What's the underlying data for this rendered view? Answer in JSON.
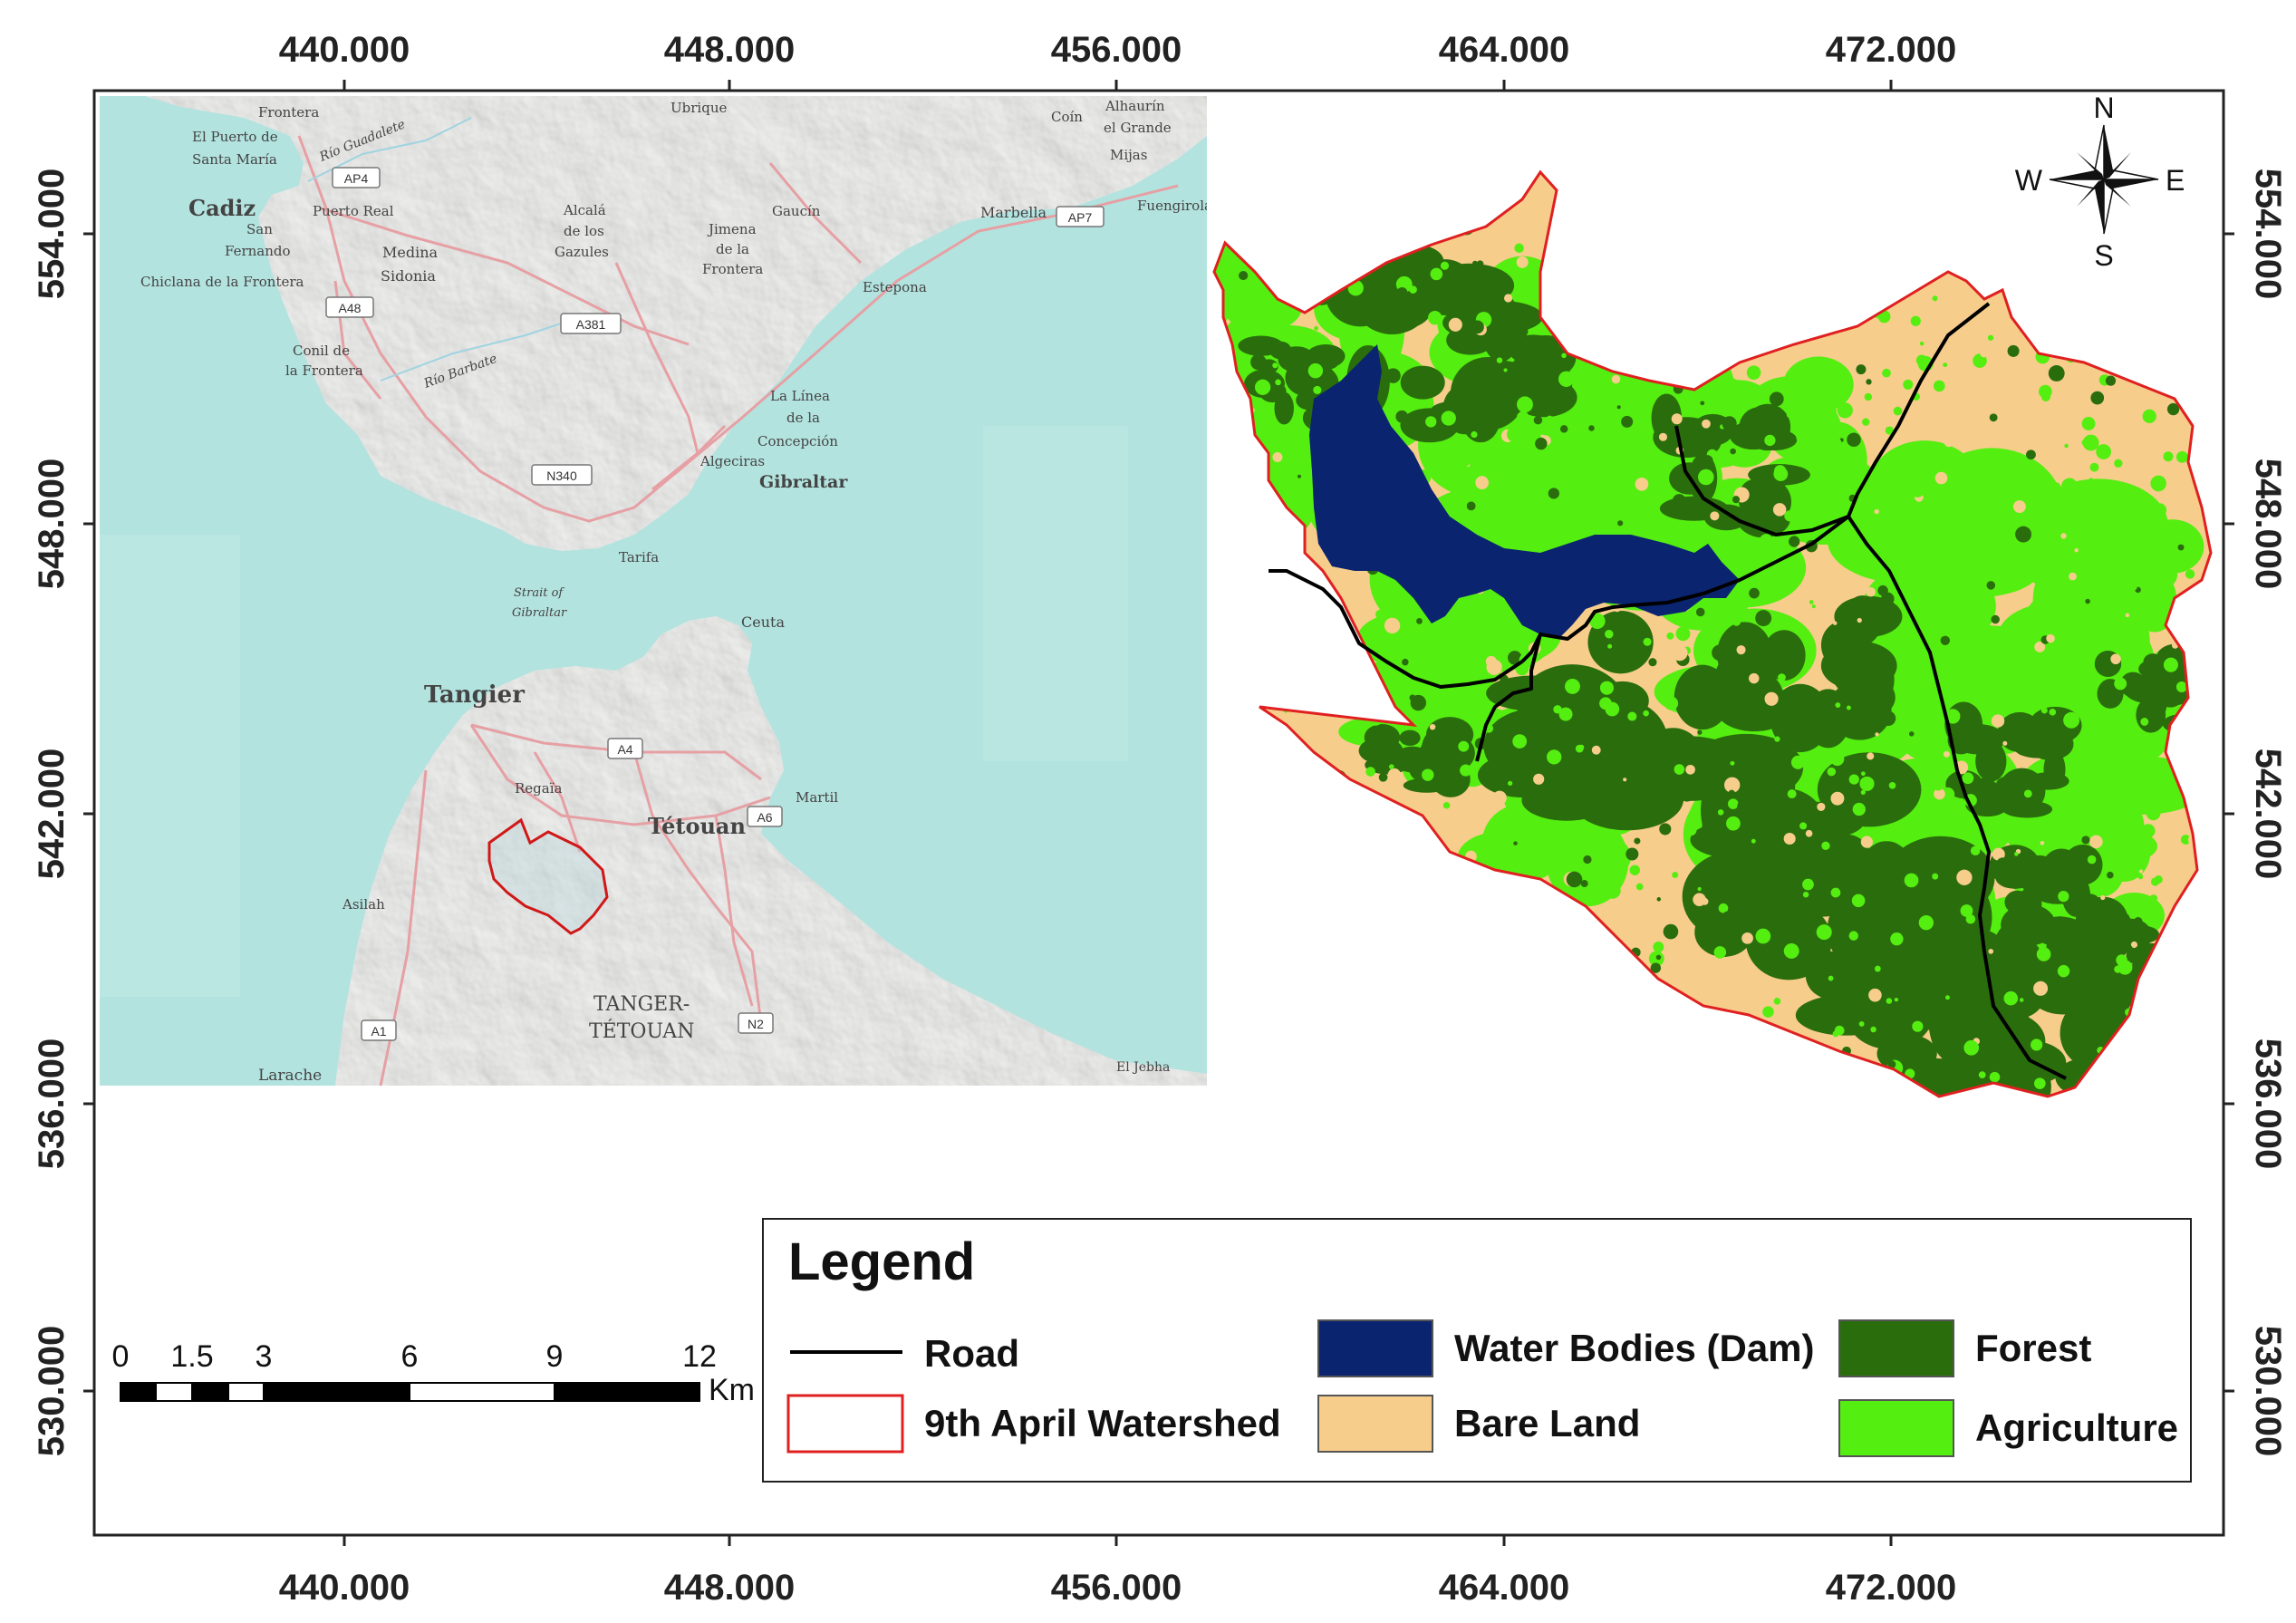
{
  "axes": {
    "x_ticks": [
      "440.000",
      "448.000",
      "456.000",
      "464.000",
      "472.000"
    ],
    "y_ticks": [
      "554.000",
      "548.000",
      "542.000",
      "536.000",
      "530.000"
    ]
  },
  "inset_map": {
    "places": [
      {
        "name": "Frontera",
        "size": 15
      },
      {
        "name": "Ubrique",
        "size": 15
      },
      {
        "name": "Coín",
        "size": 15
      },
      {
        "name": "Alhaurín",
        "size": 15
      },
      {
        "name": "el Grande",
        "size": 15
      },
      {
        "name": "Mijas",
        "size": 15
      },
      {
        "name": "El Puerto de",
        "size": 15
      },
      {
        "name": "Santa María",
        "size": 15
      },
      {
        "name": "Río Guadalete",
        "size": 14
      },
      {
        "name": "Cadiz",
        "size": 24
      },
      {
        "name": "Puerto Real",
        "size": 15
      },
      {
        "name": "San",
        "size": 15
      },
      {
        "name": "Fernando",
        "size": 15
      },
      {
        "name": "Alcalá",
        "size": 15
      },
      {
        "name": "de los",
        "size": 15
      },
      {
        "name": "Gazules",
        "size": 15
      },
      {
        "name": "Medina",
        "size": 16
      },
      {
        "name": "Sidonia",
        "size": 16
      },
      {
        "name": "Jimena",
        "size": 15
      },
      {
        "name": "de la",
        "size": 15
      },
      {
        "name": "Frontera",
        "size": 15
      },
      {
        "name": "Gaucín",
        "size": 15
      },
      {
        "name": "Marbella",
        "size": 16
      },
      {
        "name": "Fuengirola",
        "size": 15
      },
      {
        "name": "Chiclana de la Frontera",
        "size": 15
      },
      {
        "name": "Estepona",
        "size": 15
      },
      {
        "name": "Conil de",
        "size": 15
      },
      {
        "name": "la Frontera",
        "size": 15
      },
      {
        "name": "Río Barbate",
        "size": 14
      },
      {
        "name": "La Línea",
        "size": 15
      },
      {
        "name": "de la",
        "size": 15
      },
      {
        "name": "Concepción",
        "size": 15
      },
      {
        "name": "Algeciras",
        "size": 15
      },
      {
        "name": "Gibraltar",
        "size": 19
      },
      {
        "name": "Tarifa",
        "size": 15
      },
      {
        "name": "Strait of",
        "size": 13
      },
      {
        "name": "Gibraltar",
        "size": 13
      },
      {
        "name": "Ceuta",
        "size": 16
      },
      {
        "name": "Tangier",
        "size": 26
      },
      {
        "name": "Regaïa",
        "size": 15
      },
      {
        "name": "Tétouan",
        "size": 24
      },
      {
        "name": "Martil",
        "size": 15
      },
      {
        "name": "Asilah",
        "size": 15
      },
      {
        "name": "TANGER-",
        "size": 22
      },
      {
        "name": "TÉTOUAN",
        "size": 22
      },
      {
        "name": "Larache",
        "size": 17
      },
      {
        "name": "El Jebha",
        "size": 14
      }
    ],
    "road_shields": [
      "AP4",
      "A48",
      "A381",
      "AP7",
      "N340",
      "A4",
      "A6",
      "N2",
      "A1"
    ]
  },
  "compass": {
    "n": "N",
    "s": "S",
    "e": "E",
    "w": "W"
  },
  "scale_bar": {
    "labels": [
      "0",
      "1.5",
      "3",
      "6",
      "9",
      "12"
    ],
    "unit": "Km"
  },
  "legend": {
    "title": "Legend",
    "road": "Road",
    "watershed": "9th April Watershed",
    "water": "Water Bodies (Dam)",
    "bare": "Bare Land",
    "forest": "Forest",
    "agriculture": "Agriculture"
  },
  "colors": {
    "sea": "#b3e3df",
    "land": "#ededeb",
    "water": "#0a2470",
    "bare": "#f7cd8c",
    "forest": "#2a6d0d",
    "agriculture": "#55ee11",
    "road": "#000000",
    "watershed": "#e02020",
    "map_roads": "#e6a0a4"
  }
}
